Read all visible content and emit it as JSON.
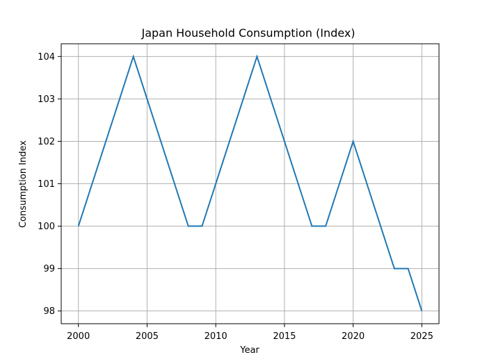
{
  "chart_data": {
    "type": "line",
    "title": "Japan Household Consumption (Index)",
    "xlabel": "Year",
    "ylabel": "Consumption Index",
    "x": [
      2000,
      2001,
      2002,
      2003,
      2004,
      2005,
      2006,
      2007,
      2008,
      2009,
      2010,
      2011,
      2012,
      2013,
      2014,
      2015,
      2016,
      2017,
      2018,
      2019,
      2020,
      2021,
      2022,
      2023,
      2024,
      2025
    ],
    "series": [
      {
        "color": "#1f77b4",
        "values": [
          100,
          101,
          102,
          103,
          104,
          103,
          102,
          101,
          100,
          100,
          101,
          102,
          103,
          104,
          103,
          102,
          101,
          100,
          100,
          101,
          102,
          101,
          100,
          99,
          99,
          98
        ]
      }
    ],
    "xticks": [
      2000,
      2005,
      2010,
      2015,
      2020,
      2025
    ],
    "yticks": [
      98,
      99,
      100,
      101,
      102,
      103,
      104
    ],
    "xlim": [
      1998.75,
      2026.25
    ],
    "ylim": [
      97.7,
      104.3
    ],
    "grid": true
  }
}
